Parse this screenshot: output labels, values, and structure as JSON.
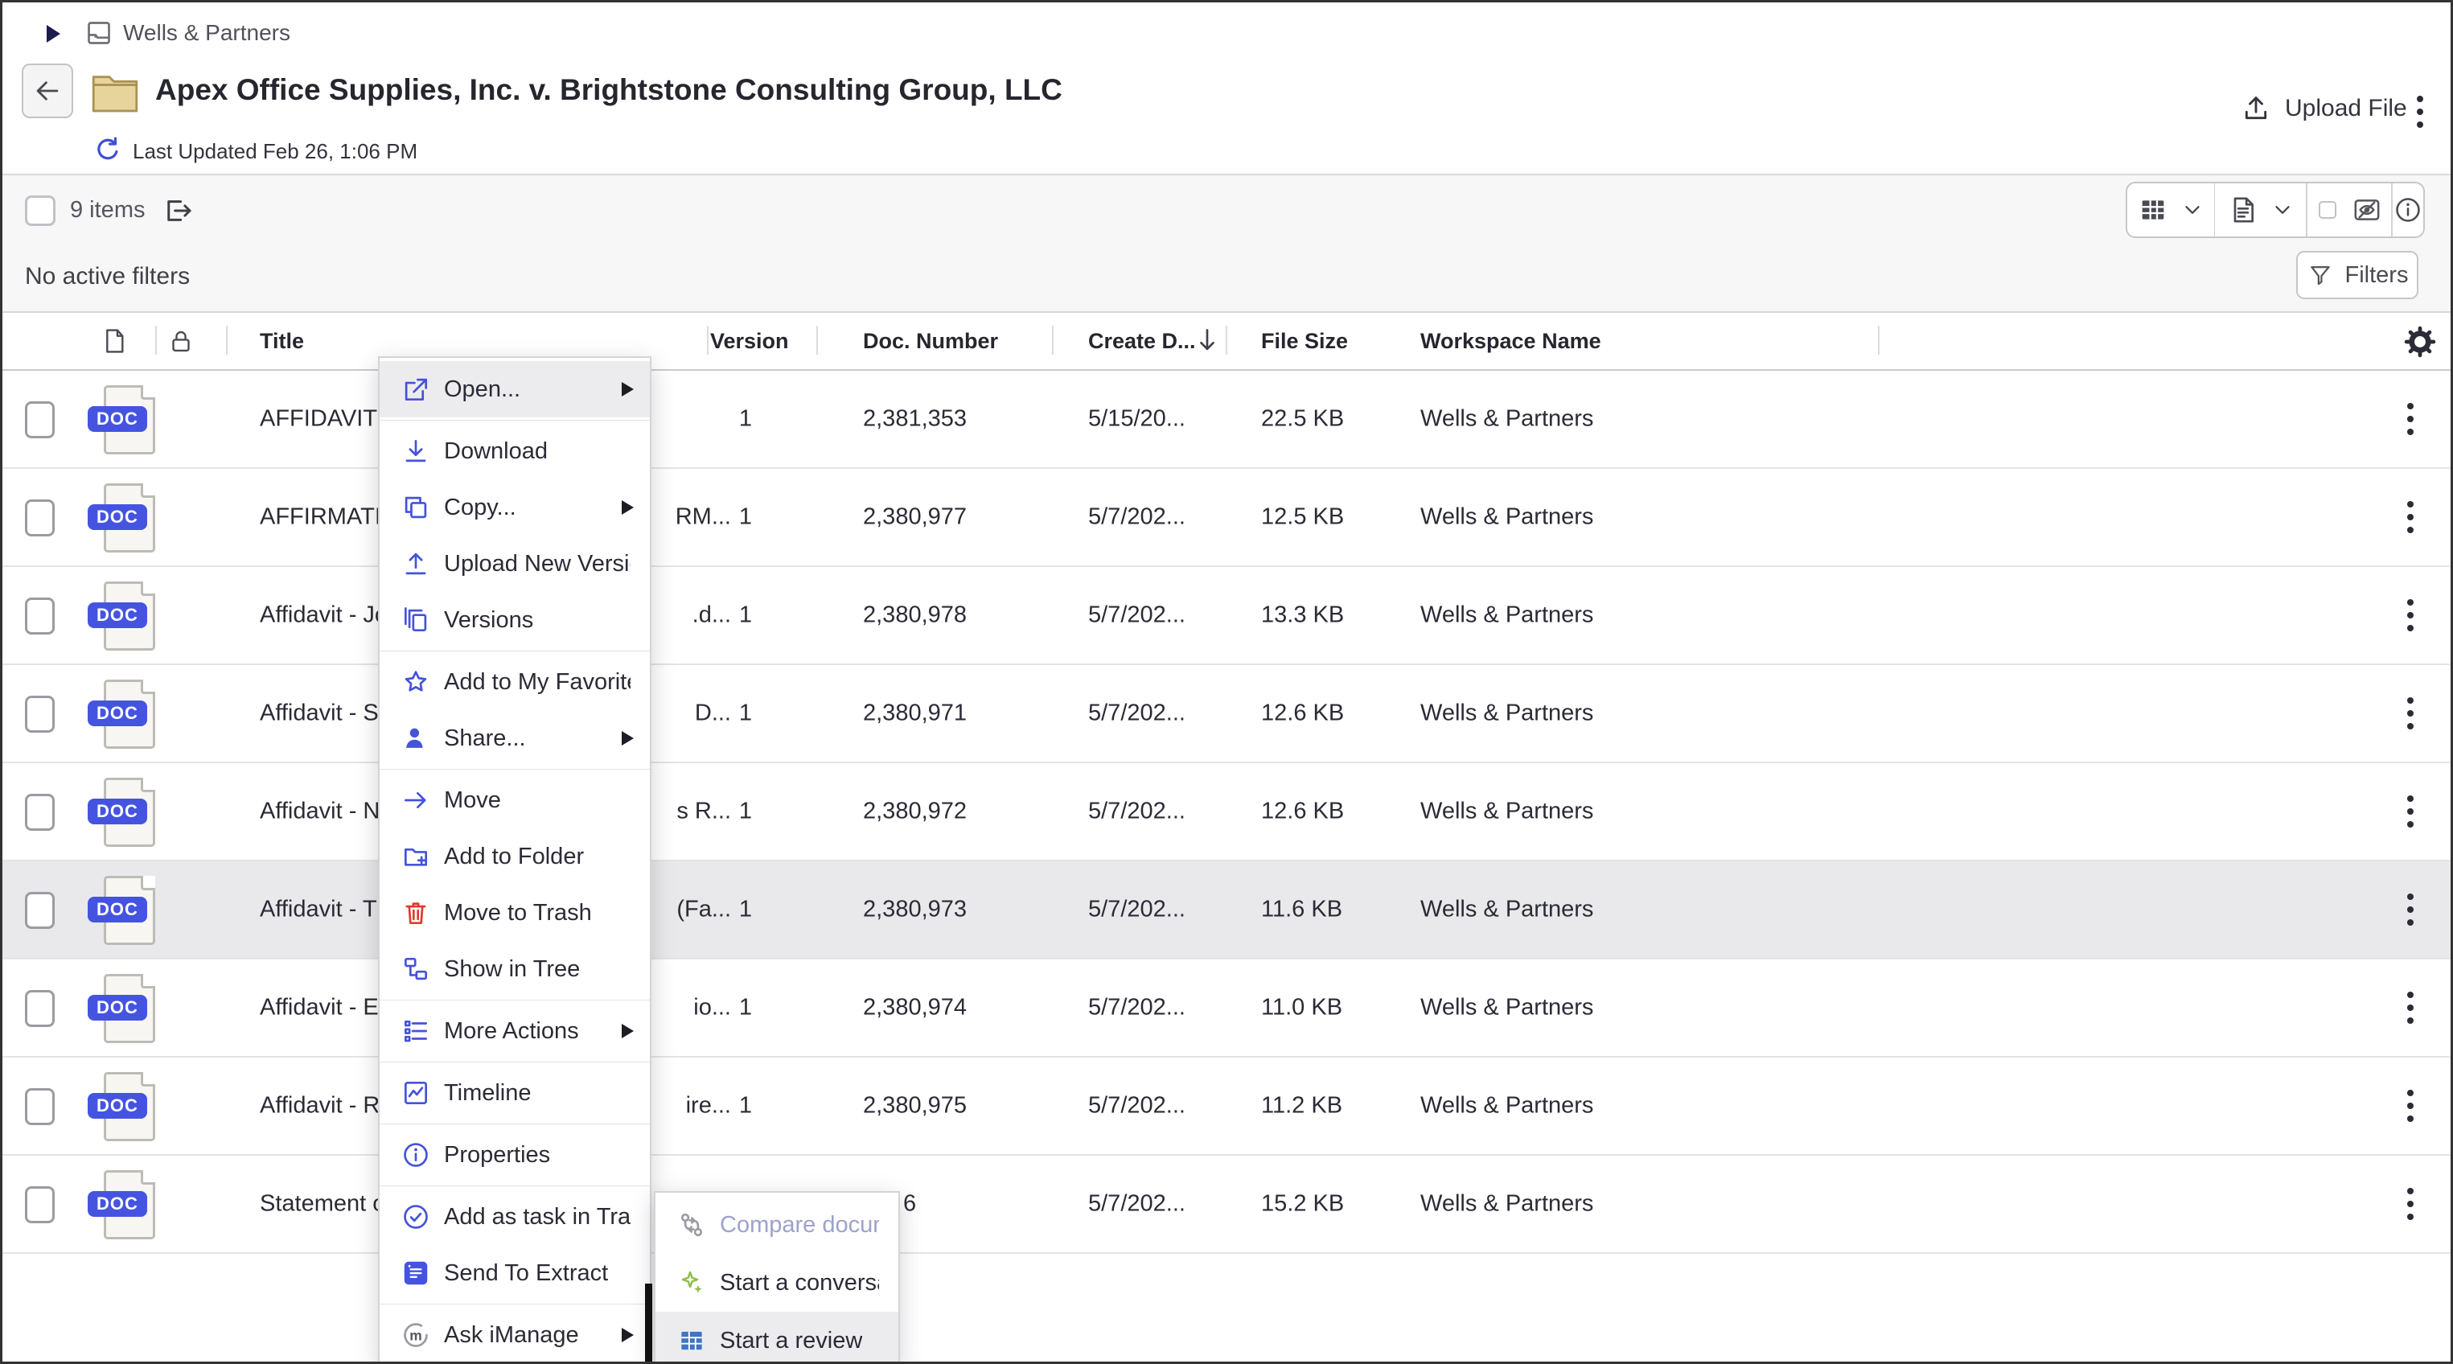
{
  "colors": {
    "accent_blue": "#4553d9",
    "danger_red": "#e23a2e",
    "green": "#8fbe4f",
    "review_blue": "#4273c4",
    "doc_badge_blue": "#4554e0",
    "selected_row_bg": "#e9e9eb",
    "menu_highlight_bg": "#ececee",
    "disabled_text": "#9da2c9",
    "folder_tan": "#e7d49d"
  },
  "breadcrumb": {
    "workspace": "Wells & Partners"
  },
  "header": {
    "title": "Apex Office Supplies, Inc. v. Brightstone Consulting Group, LLC",
    "last_updated": "Last Updated Feb 26, 1:06 PM",
    "upload_file_label": "Upload File"
  },
  "toolbar": {
    "items_count": "9 items"
  },
  "filter_bar": {
    "status": "No active filters",
    "filters_label": "Filters"
  },
  "table": {
    "doc_badge": "DOC",
    "columns": {
      "title": "Title",
      "version": "Version",
      "doc_number": "Doc. Number",
      "create_date": "Create D...",
      "file_size": "File Size",
      "workspace": "Workspace Name"
    },
    "rows": [
      {
        "title_start": "AFFIDAVIT C",
        "title_end": "",
        "version": "1",
        "doc_number": "2,381,353",
        "create_date": "5/15/20...",
        "file_size": "22.5 KB",
        "workspace": "Wells & Partners",
        "selected": false
      },
      {
        "title_start": "AFFIRMATIV",
        "title_end": "RM...",
        "version": "1",
        "doc_number": "2,380,977",
        "create_date": "5/7/202...",
        "file_size": "12.5 KB",
        "workspace": "Wells & Partners",
        "selected": false
      },
      {
        "title_start": "Affidavit - Jo",
        "title_end": ".d...",
        "version": "1",
        "doc_number": "2,380,978",
        "create_date": "5/7/202...",
        "file_size": "13.3 KB",
        "workspace": "Wells & Partners",
        "selected": false
      },
      {
        "title_start": "Affidavit - S",
        "title_end": "D...",
        "version": "1",
        "doc_number": "2,380,971",
        "create_date": "5/7/202...",
        "file_size": "12.6 KB",
        "workspace": "Wells & Partners",
        "selected": false
      },
      {
        "title_start": "Affidavit - N",
        "title_end": "s R...",
        "version": "1",
        "doc_number": "2,380,972",
        "create_date": "5/7/202...",
        "file_size": "12.6 KB",
        "workspace": "Wells & Partners",
        "selected": false
      },
      {
        "title_start": "Affidavit - T",
        "title_end": "(Fa...",
        "version": "1",
        "doc_number": "2,380,973",
        "create_date": "5/7/202...",
        "file_size": "11.6 KB",
        "workspace": "Wells & Partners",
        "selected": true
      },
      {
        "title_start": "Affidavit - E",
        "title_end": "io...",
        "version": "1",
        "doc_number": "2,380,974",
        "create_date": "5/7/202...",
        "file_size": "11.0 KB",
        "workspace": "Wells & Partners",
        "selected": false
      },
      {
        "title_start": "Affidavit - R",
        "title_end": "ire...",
        "version": "1",
        "doc_number": "2,380,975",
        "create_date": "5/7/202...",
        "file_size": "11.2 KB",
        "workspace": "Wells & Partners",
        "selected": false
      },
      {
        "title_start": "Statement o",
        "title_end": "",
        "version": "",
        "doc_number": "6",
        "doc_partial": true,
        "create_date": "5/7/202...",
        "file_size": "15.2 KB",
        "workspace": "Wells & Partners",
        "selected": false
      }
    ]
  },
  "context_menu": {
    "items": [
      {
        "label": "Open...",
        "icon": "open-external",
        "submenu": true,
        "highlighted": true,
        "divider_after": true
      },
      {
        "label": "Download",
        "icon": "download"
      },
      {
        "label": "Copy...",
        "icon": "copy",
        "submenu": true
      },
      {
        "label": "Upload New Version",
        "icon": "upload"
      },
      {
        "label": "Versions",
        "icon": "versions",
        "divider_after": true
      },
      {
        "label": "Add to My Favorites",
        "icon": "star"
      },
      {
        "label": "Share...",
        "icon": "person",
        "submenu": true,
        "divider_after": true
      },
      {
        "label": "Move",
        "icon": "arrow-right"
      },
      {
        "label": "Add to Folder",
        "icon": "folder-plus"
      },
      {
        "label": "Move to Trash",
        "icon": "trash"
      },
      {
        "label": "Show in Tree",
        "icon": "tree",
        "divider_after": true
      },
      {
        "label": "More Actions",
        "icon": "list",
        "submenu": true,
        "divider_after": true
      },
      {
        "label": "Timeline",
        "icon": "timeline",
        "divider_after": true
      },
      {
        "label": "Properties",
        "icon": "info",
        "divider_after": true
      },
      {
        "label": "Add as task in Tracker",
        "icon": "check-circle"
      },
      {
        "label": "Send To Extract",
        "icon": "extract",
        "divider_after": true
      },
      {
        "label": "Ask iManage",
        "icon": "imanage",
        "submenu": true
      }
    ]
  },
  "submenu": {
    "items": [
      {
        "label": "Compare documents",
        "icon": "compare",
        "disabled": true
      },
      {
        "label": "Start a conversation",
        "icon": "sparkle"
      },
      {
        "label": "Start a review",
        "icon": "review-table",
        "highlighted": true
      }
    ]
  }
}
